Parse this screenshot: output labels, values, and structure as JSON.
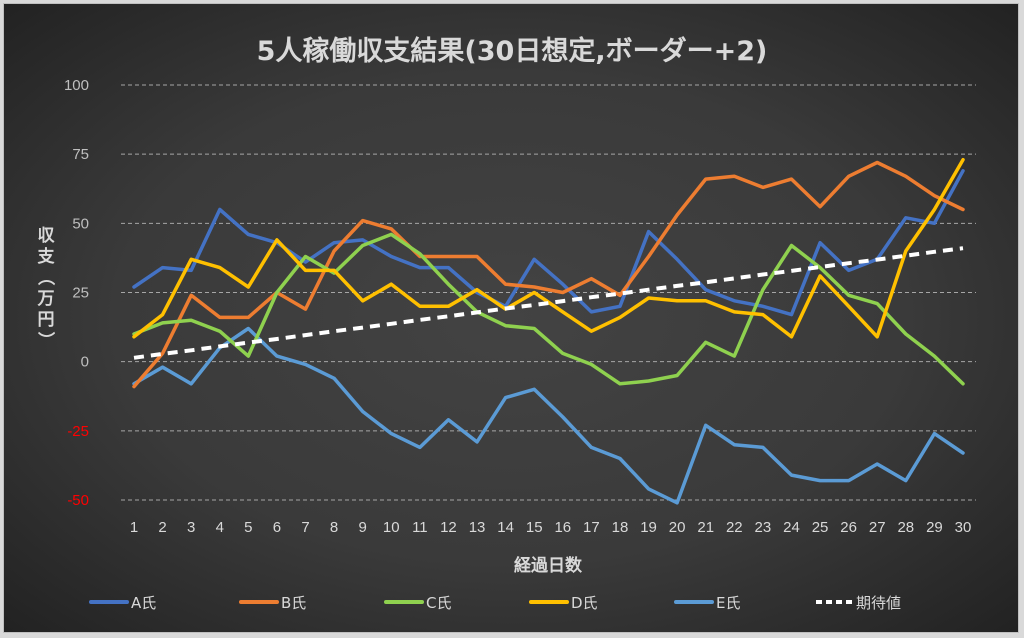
{
  "chart_data": {
    "type": "line",
    "title": "5人稼働収支結果(30日想定,ボーダー+2)",
    "xlabel": "経過日数",
    "ylabel": "収支（万円）",
    "x": [
      1,
      2,
      3,
      4,
      5,
      6,
      7,
      8,
      9,
      10,
      11,
      12,
      13,
      14,
      15,
      16,
      17,
      18,
      19,
      20,
      21,
      22,
      23,
      24,
      25,
      26,
      27,
      28,
      29,
      30
    ],
    "ylim": [
      -50,
      100
    ],
    "yticks": [
      100,
      75,
      50,
      25,
      0,
      -25,
      -50
    ],
    "grid": true,
    "legend_position": "bottom",
    "negative_tick_color": "#ff0000",
    "series": [
      {
        "name": "A氏",
        "color": "#4472c4",
        "dashed": false,
        "values": [
          27,
          34,
          33,
          55,
          46,
          43,
          36,
          43,
          44,
          38,
          34,
          34,
          25,
          20,
          37,
          28,
          18,
          20,
          47,
          37,
          26,
          22,
          20,
          17,
          43,
          33,
          37,
          52,
          50,
          69
        ]
      },
      {
        "name": "B氏",
        "color": "#ed7d31",
        "dashed": false,
        "values": [
          -9,
          3,
          24,
          16,
          16,
          25,
          19,
          40,
          51,
          48,
          38,
          38,
          38,
          28,
          27,
          25,
          30,
          24,
          38,
          53,
          66,
          67,
          63,
          66,
          56,
          67,
          72,
          67,
          60,
          55
        ]
      },
      {
        "name": "C氏",
        "color": "#8fd14f",
        "dashed": false,
        "values": [
          10,
          14,
          15,
          11,
          2,
          25,
          38,
          32,
          42,
          46,
          39,
          28,
          18,
          13,
          12,
          3,
          -1,
          -8,
          -7,
          -5,
          7,
          2,
          26,
          42,
          34,
          24,
          21,
          10,
          2,
          -8
        ]
      },
      {
        "name": "D氏",
        "color": "#ffc000",
        "dashed": false,
        "values": [
          9,
          17,
          37,
          34,
          27,
          44,
          33,
          33,
          22,
          28,
          20,
          20,
          26,
          19,
          25,
          18,
          11,
          16,
          23,
          22,
          22,
          18,
          17,
          9,
          31,
          20,
          9,
          40,
          55,
          73
        ]
      },
      {
        "name": "E氏",
        "color": "#5b9bd5",
        "dashed": false,
        "values": [
          -8,
          -2,
          -8,
          5,
          12,
          2,
          -1,
          -6,
          -18,
          -26,
          -31,
          -21,
          -29,
          -13,
          -10,
          -20,
          -31,
          -35,
          -46,
          -51,
          -23,
          -30,
          -31,
          -41,
          -43,
          -43,
          -37,
          -43,
          -26,
          -33
        ]
      },
      {
        "name": "期待値",
        "color": "#ffffff",
        "dashed": true,
        "values": [
          1.4,
          2.8,
          4.1,
          5.5,
          6.9,
          8.2,
          9.6,
          11.0,
          12.3,
          13.7,
          15.1,
          16.4,
          17.8,
          19.2,
          20.5,
          21.9,
          23.3,
          24.6,
          26.0,
          27.4,
          28.7,
          30.1,
          31.5,
          32.8,
          34.2,
          35.6,
          36.9,
          38.3,
          39.7,
          41.0
        ]
      }
    ]
  }
}
